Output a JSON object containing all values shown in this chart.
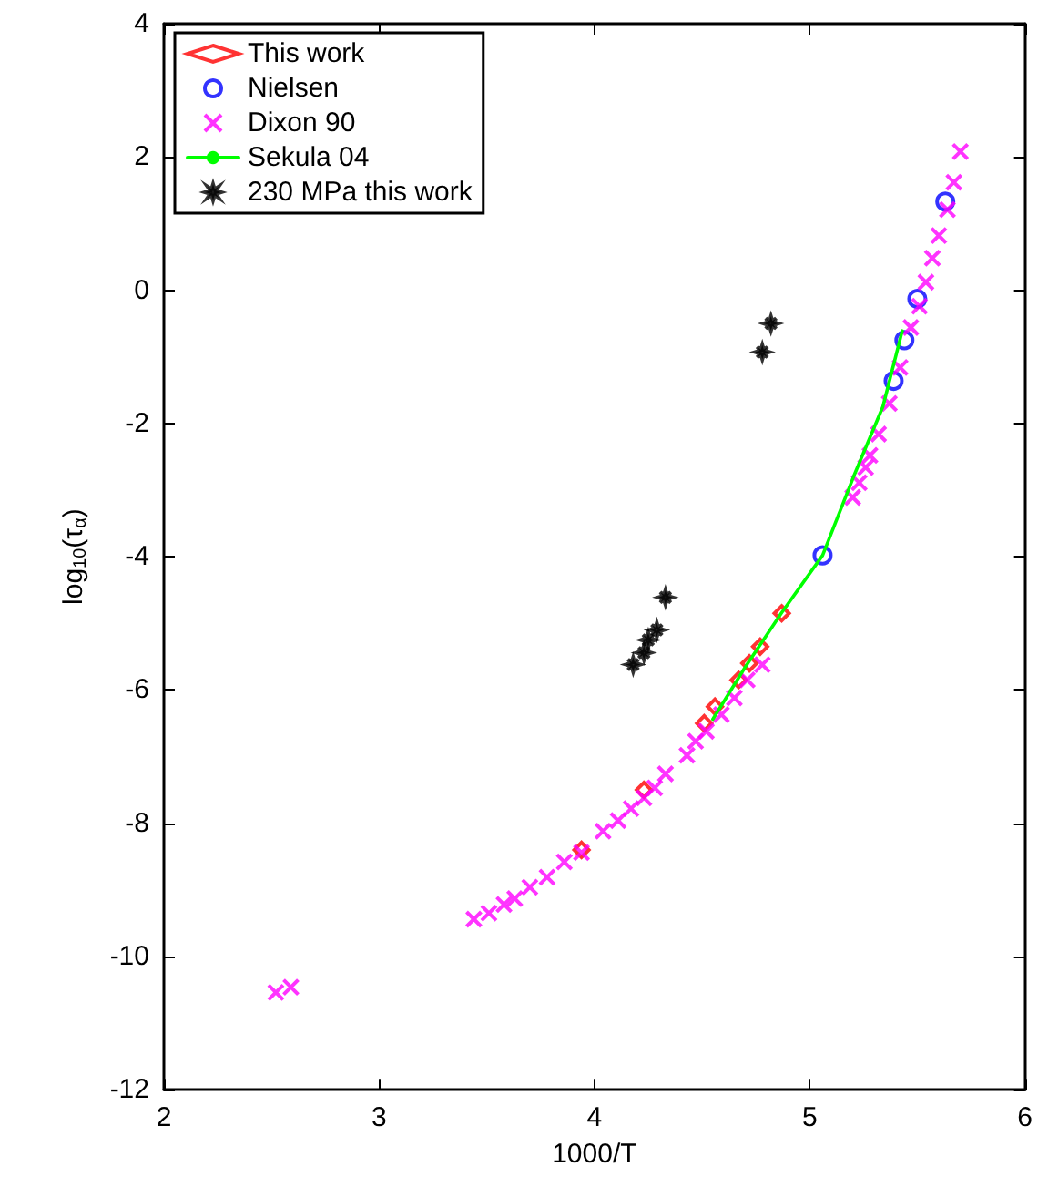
{
  "chart_data": {
    "type": "scatter",
    "xlabel": "1000/T",
    "ylabel": "log$_{10}$(τ$_{α}$)",
    "xlim": [
      2,
      6
    ],
    "xticks": [
      2,
      3,
      4,
      5,
      6
    ],
    "ylim": [
      -12,
      4
    ],
    "yticks": [
      -12,
      -10,
      -8,
      -6,
      -4,
      -2,
      0,
      2,
      4
    ],
    "grid": false,
    "legend": "top left",
    "series": [
      {
        "name": "This work",
        "color": "#ff0000",
        "marker": "diamond",
        "x": [
          3.94,
          4.23,
          4.51,
          4.56,
          4.67,
          4.72,
          4.77,
          4.87
        ],
        "values": [
          -8.4,
          -7.5,
          -6.5,
          -6.25,
          -5.85,
          -5.6,
          -5.35,
          -4.85
        ]
      },
      {
        "name": "Nielsen",
        "color": "#0000ff",
        "marker": "circle",
        "x": [
          5.06,
          5.39,
          5.44,
          5.5,
          5.63
        ],
        "values": [
          -3.98,
          -1.36,
          -0.75,
          -0.13,
          1.33
        ]
      },
      {
        "name": "Dixon 90",
        "color": "#ff00ff",
        "marker": "cross",
        "x": [
          2.52,
          2.59,
          3.44,
          3.51,
          3.58,
          3.63,
          3.7,
          3.78,
          3.86,
          3.94,
          4.04,
          4.11,
          4.17,
          4.23,
          4.28,
          4.33,
          4.43,
          4.47,
          4.52,
          4.59,
          4.65,
          4.71,
          4.78,
          5.2,
          5.23,
          5.26,
          5.28,
          5.32,
          5.37,
          5.42,
          5.47,
          5.51,
          5.54,
          5.57,
          5.6,
          5.64,
          5.67,
          5.7
        ],
        "values": [
          -10.54,
          -10.46,
          -9.44,
          -9.35,
          -9.22,
          -9.13,
          -8.96,
          -8.81,
          -8.58,
          -8.44,
          -8.12,
          -7.96,
          -7.78,
          -7.62,
          -7.47,
          -7.26,
          -6.98,
          -6.77,
          -6.62,
          -6.37,
          -6.12,
          -5.85,
          -5.62,
          -3.11,
          -2.89,
          -2.66,
          -2.48,
          -2.16,
          -1.7,
          -1.16,
          -0.56,
          -0.24,
          0.12,
          0.48,
          0.82,
          1.21,
          1.62,
          2.08
        ]
      },
      {
        "name": "Sekula 04",
        "type": "line",
        "color": "#00ff00",
        "marker": "none",
        "line_style": "solid",
        "x": [
          4.55,
          4.7,
          4.87,
          5.06,
          5.21,
          5.34,
          5.43
        ],
        "values": [
          -6.44,
          -5.66,
          -4.84,
          -3.98,
          -2.75,
          -1.75,
          -0.61
        ]
      },
      {
        "name": "230 MPa this work",
        "color": "#000000",
        "marker": "star",
        "x": [
          4.18,
          4.23,
          4.25,
          4.29,
          4.33,
          4.78,
          4.8,
          4.82
        ],
        "values": [
          -5.62,
          -5.44,
          -5.25,
          -5.1,
          -4.61,
          -0.93,
          null,
          -0.5
        ]
      }
    ]
  }
}
